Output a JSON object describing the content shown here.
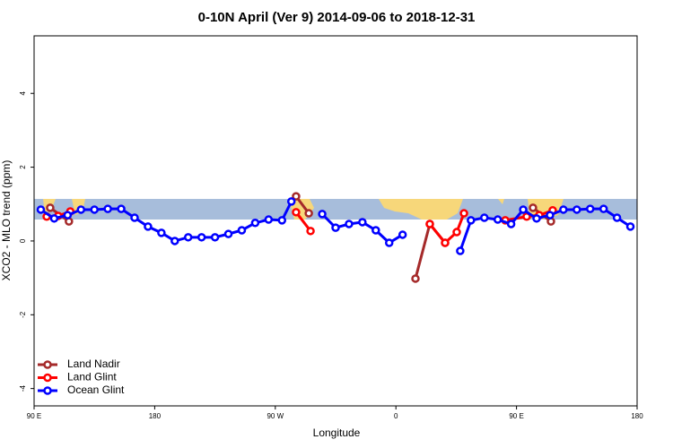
{
  "chart_data": {
    "type": "line",
    "title": "0-10N April (Ver 9)   2014-09-06 to 2018-12-31",
    "x_label": "Longitude",
    "y_label": "XCO2 - MLO trend (ppm)",
    "xlim": [
      90,
      540
    ],
    "ylim": [
      -4.47,
      5.56
    ],
    "xticks": [
      {
        "value": 90,
        "label": "90 E"
      },
      180,
      {
        "value": 270,
        "label": "90 W"
      },
      {
        "value": 360,
        "label": "0"
      },
      {
        "value": 450,
        "label": "90 E"
      },
      {
        "value": 540,
        "label": "180"
      }
    ],
    "yticks": [
      -4,
      -2,
      0,
      2,
      4
    ],
    "legend": "bottom-left",
    "series": [
      {
        "name": "Land Nadir",
        "color": "#a52a2a",
        "x": [
          102,
          116,
          null,
          285.5,
          295,
          null,
          374.6,
          385.3,
          396.7,
          null,
          462.3,
          475.7
        ],
        "values": [
          0.9,
          0.53,
          null,
          1.21,
          0.75,
          null,
          -1.02,
          0.46,
          -0.05,
          null,
          0.9,
          0.53
        ]
      },
      {
        "name": "Land Glint",
        "color": "#ff0000",
        "x": [
          99.4,
          108,
          117,
          null,
          285.5,
          296.3,
          null,
          385.3,
          396.7,
          405.4,
          410.8,
          null,
          441.6,
          457.6,
          467,
          477
        ],
        "values": [
          0.66,
          0.68,
          0.8,
          null,
          0.78,
          0.27,
          null,
          0.46,
          -0.05,
          0.24,
          0.75,
          null,
          0.56,
          0.66,
          0.7,
          0.83
        ]
      },
      {
        "name": "Ocean Glint",
        "color": "#0000ff",
        "x": [
          95,
          105,
          115,
          125,
          135,
          145,
          155,
          165,
          175,
          185,
          195,
          205,
          215,
          225,
          235,
          245,
          255,
          265,
          275,
          282,
          null,
          305,
          315,
          325,
          335,
          345,
          355,
          365,
          null,
          408,
          416,
          426,
          436,
          446,
          455,
          465,
          475,
          485,
          495,
          505,
          515,
          525,
          535
        ],
        "values": [
          0.85,
          0.61,
          0.7,
          0.85,
          0.85,
          0.87,
          0.87,
          0.63,
          0.39,
          0.22,
          0.0,
          0.1,
          0.1,
          0.1,
          0.19,
          0.29,
          0.49,
          0.58,
          0.56,
          1.07,
          null,
          0.73,
          0.36,
          0.46,
          0.51,
          0.29,
          -0.05,
          0.17,
          null,
          -0.27,
          0.56,
          0.63,
          0.58,
          0.46,
          0.85,
          0.61,
          0.7,
          0.85,
          0.85,
          0.87,
          0.87,
          0.63,
          0.39
        ]
      }
    ]
  }
}
